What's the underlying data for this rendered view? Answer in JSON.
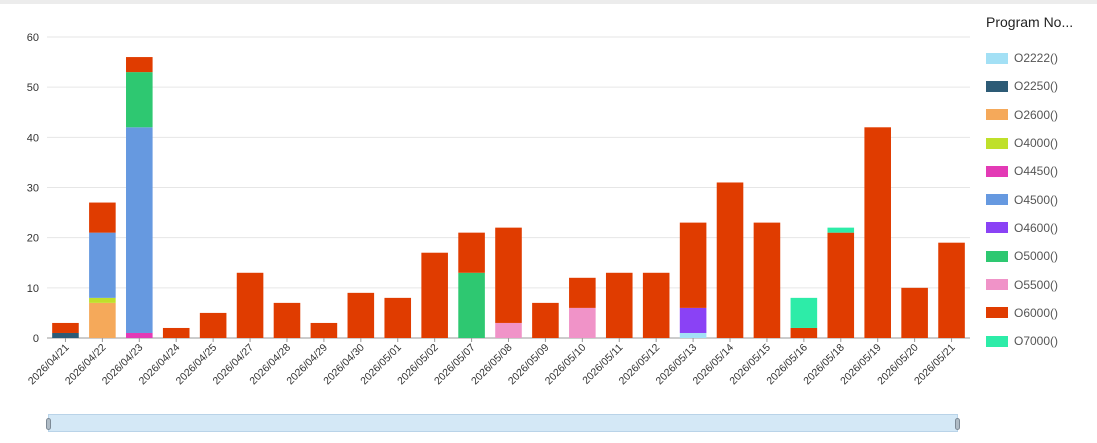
{
  "chart_data": {
    "type": "bar",
    "stacked": true,
    "ylim": [
      0,
      60
    ],
    "yticks": [
      0,
      10,
      20,
      30,
      40,
      50,
      60
    ],
    "grid": true,
    "legend_position": "right",
    "legend_title": "Program No...",
    "categories": [
      "2026/04/21",
      "2026/04/22",
      "2026/04/23",
      "2026/04/24",
      "2026/04/25",
      "2026/04/27",
      "2026/04/28",
      "2026/04/29",
      "2026/04/30",
      "2026/05/01",
      "2026/05/02",
      "2026/05/07",
      "2026/05/08",
      "2026/05/09",
      "2026/05/10",
      "2026/05/11",
      "2026/05/12",
      "2026/05/13",
      "2026/05/14",
      "2026/05/15",
      "2026/05/16",
      "2026/05/18",
      "2026/05/19",
      "2026/05/20",
      "2026/05/21"
    ],
    "series": [
      {
        "name": "O2222()",
        "color": "#a3e0f5",
        "values": [
          0,
          0,
          0,
          0,
          0,
          0,
          0,
          0,
          0,
          0,
          0,
          0,
          0,
          0,
          0,
          0,
          0,
          1,
          0,
          0,
          0,
          0,
          0,
          0,
          0
        ]
      },
      {
        "name": "O2250()",
        "color": "#2d5b76",
        "values": [
          1,
          0,
          0,
          0,
          0,
          0,
          0,
          0,
          0,
          0,
          0,
          0,
          0,
          0,
          0,
          0,
          0,
          0,
          0,
          0,
          0,
          0,
          0,
          0,
          0
        ]
      },
      {
        "name": "O2600()",
        "color": "#f5a95a",
        "values": [
          0,
          7,
          0,
          0,
          0,
          0,
          0,
          0,
          0,
          0,
          0,
          0,
          0,
          0,
          0,
          0,
          0,
          0,
          0,
          0,
          0,
          0,
          0,
          0,
          0
        ]
      },
      {
        "name": "O4000()",
        "color": "#bfe02a",
        "values": [
          0,
          1,
          0,
          0,
          0,
          0,
          0,
          0,
          0,
          0,
          0,
          0,
          0,
          0,
          0,
          0,
          0,
          0,
          0,
          0,
          0,
          0,
          0,
          0,
          0
        ]
      },
      {
        "name": "O4450()",
        "color": "#e33ab5",
        "values": [
          0,
          0,
          1,
          0,
          0,
          0,
          0,
          0,
          0,
          0,
          0,
          0,
          0,
          0,
          0,
          0,
          0,
          0,
          0,
          0,
          0,
          0,
          0,
          0,
          0
        ]
      },
      {
        "name": "O4500()",
        "color": "#6699e0",
        "values": [
          0,
          13,
          41,
          0,
          0,
          0,
          0,
          0,
          0,
          0,
          0,
          0,
          0,
          0,
          0,
          0,
          0,
          0,
          0,
          0,
          0,
          0,
          0,
          0,
          0
        ]
      },
      {
        "name": "O4600()",
        "color": "#8a42f5",
        "values": [
          0,
          0,
          0,
          0,
          0,
          0,
          0,
          0,
          0,
          0,
          0,
          0,
          0,
          0,
          0,
          0,
          0,
          5,
          0,
          0,
          0,
          0,
          0,
          0,
          0
        ]
      },
      {
        "name": "O5000()",
        "color": "#2ec871",
        "values": [
          0,
          0,
          11,
          0,
          0,
          0,
          0,
          0,
          0,
          0,
          0,
          13,
          0,
          0,
          0,
          0,
          0,
          0,
          0,
          0,
          0,
          0,
          0,
          0,
          0
        ]
      },
      {
        "name": "O5500()",
        "color": "#f093c8",
        "values": [
          0,
          0,
          0,
          0,
          0,
          0,
          0,
          0,
          0,
          0,
          0,
          0,
          3,
          0,
          6,
          0,
          0,
          0,
          0,
          0,
          0,
          0,
          0,
          0,
          0
        ]
      },
      {
        "name": "O6000()",
        "color": "#e03c00",
        "values": [
          2,
          6,
          3,
          2,
          5,
          13,
          7,
          3,
          9,
          8,
          17,
          8,
          19,
          7,
          6,
          13,
          13,
          17,
          31,
          23,
          2,
          21,
          42,
          10,
          19
        ]
      },
      {
        "name": "O7000()",
        "color": "#2deca8",
        "values": [
          0,
          0,
          0,
          0,
          0,
          0,
          0,
          0,
          0,
          0,
          0,
          0,
          0,
          0,
          0,
          0,
          0,
          0,
          0,
          0,
          6,
          1,
          0,
          0,
          0
        ]
      }
    ]
  }
}
